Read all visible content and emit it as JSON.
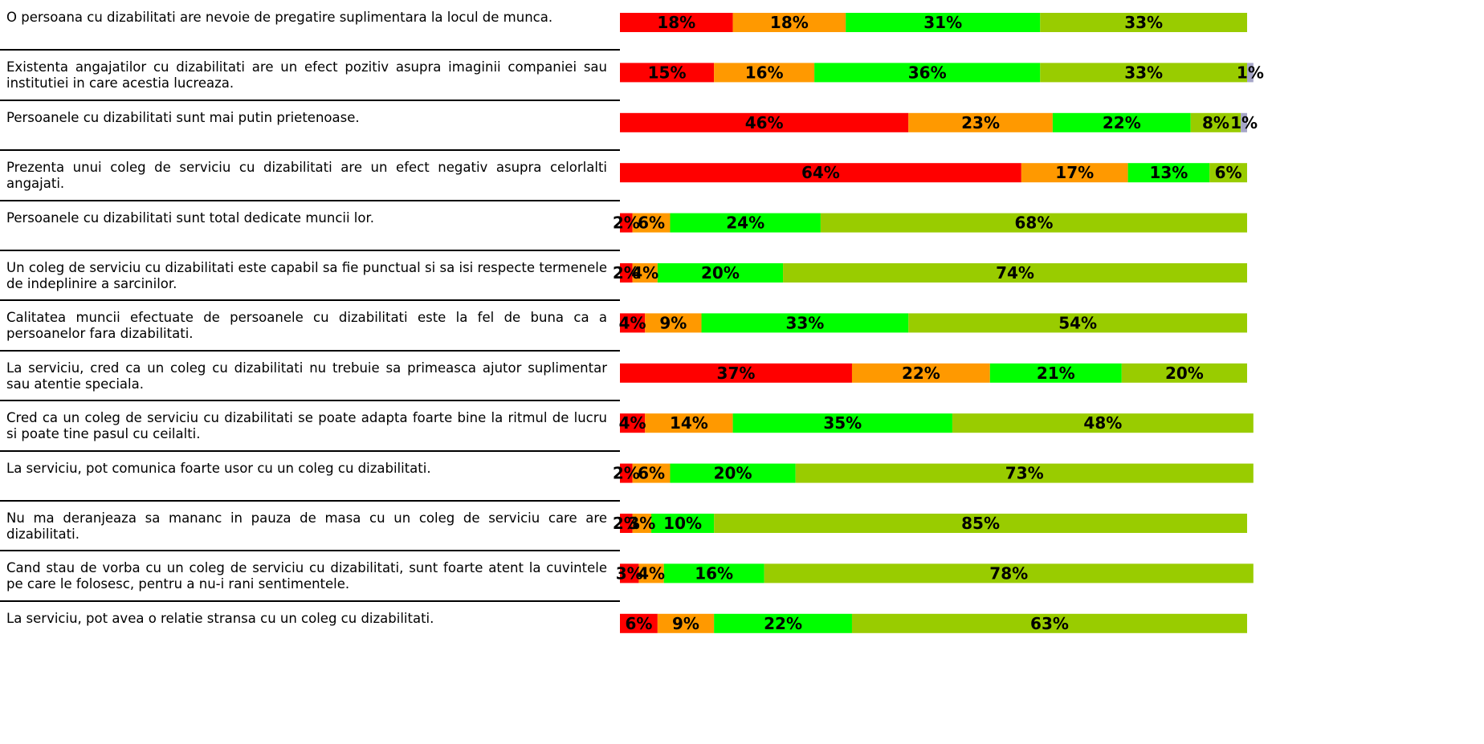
{
  "chart_data": {
    "type": "stacked-bar-horizontal",
    "categories": [
      "O persoana cu dizabilitati are nevoie de pregatire suplimentara la locul de munca.",
      "Existenta angajatilor cu dizabilitati are un efect pozitiv asupra imaginii companiei sau institutiei in care acestia lucreaza.",
      "Persoanele cu dizabilitati sunt mai putin prietenoase.",
      "Prezenta unui coleg de serviciu cu dizabilitati are un efect negativ asupra celorlalti angajati.",
      "Persoanele cu dizabilitati sunt total dedicate muncii lor.",
      "Un coleg de serviciu cu dizabilitati este capabil sa fie punctual si sa isi respecte termenele de indeplinire a sarcinilor.",
      "Calitatea muncii efectuate de persoanele cu dizabilitati este la fel de buna ca a persoanelor fara dizabilitati.",
      "La serviciu, cred ca un coleg cu dizabilitati nu trebuie sa primeasca ajutor suplimentar sau atentie speciala.",
      "Cred ca un coleg de serviciu cu dizabilitati se poate adapta foarte bine la ritmul de lucru si poate tine pasul cu ceilalti.",
      "La serviciu, pot comunica foarte usor cu un coleg cu dizabilitati.",
      "Nu ma deranjeaza sa mananc in pauza de masa cu un coleg de serviciu care are dizabilitati.",
      "Cand stau de vorba cu un coleg de serviciu cu dizabilitati, sunt foarte atent la cuvintele pe care le folosesc, pentru a nu-i rani sentimentele.",
      "La serviciu, pot avea o relatie stransa cu un coleg cu dizabilitati."
    ],
    "xlim": [
      0,
      100
    ],
    "series": [
      {
        "color": "#ff0000",
        "values": [
          18,
          15,
          46,
          64,
          2,
          2,
          4,
          37,
          4,
          2,
          2,
          3,
          6
        ],
        "value_labels": [
          "18%",
          "15%",
          "46%",
          "64%",
          "2%",
          "2%",
          "4%",
          "37%",
          "4%",
          "2%",
          "2%",
          "3%",
          "6%"
        ]
      },
      {
        "color": "#ff9900",
        "values": [
          18,
          16,
          23,
          17,
          6,
          4,
          9,
          22,
          14,
          6,
          3,
          4,
          9
        ],
        "value_labels": [
          "18%",
          "16%",
          "23%",
          "17%",
          "6%",
          "4%",
          "9%",
          "22%",
          "14%",
          "6%",
          "3%",
          "4%",
          "9%"
        ]
      },
      {
        "color": "#00ff00",
        "values": [
          31,
          36,
          22,
          13,
          24,
          20,
          33,
          21,
          35,
          20,
          10,
          16,
          22
        ],
        "value_labels": [
          "31%",
          "36%",
          "22%",
          "13%",
          "24%",
          "20%",
          "33%",
          "21%",
          "35%",
          "20%",
          "10%",
          "16%",
          "22%"
        ]
      },
      {
        "color": "#99cc00",
        "values": [
          33,
          33,
          8,
          6,
          68,
          74,
          54,
          20,
          48,
          73,
          85,
          78,
          63
        ],
        "value_labels": [
          "33%",
          "33%",
          "8%",
          "6%",
          "68%",
          "74%",
          "54%",
          "20%",
          "48%",
          "73%",
          "85%",
          "78%",
          "63%"
        ]
      },
      {
        "color": "#a6a6c8",
        "values": [
          null,
          1,
          1,
          null,
          null,
          null,
          null,
          null,
          null,
          null,
          null,
          null,
          null
        ],
        "value_labels": [
          null,
          "1%",
          "1%",
          null,
          null,
          null,
          null,
          null,
          null,
          null,
          null,
          null,
          null
        ]
      }
    ]
  }
}
